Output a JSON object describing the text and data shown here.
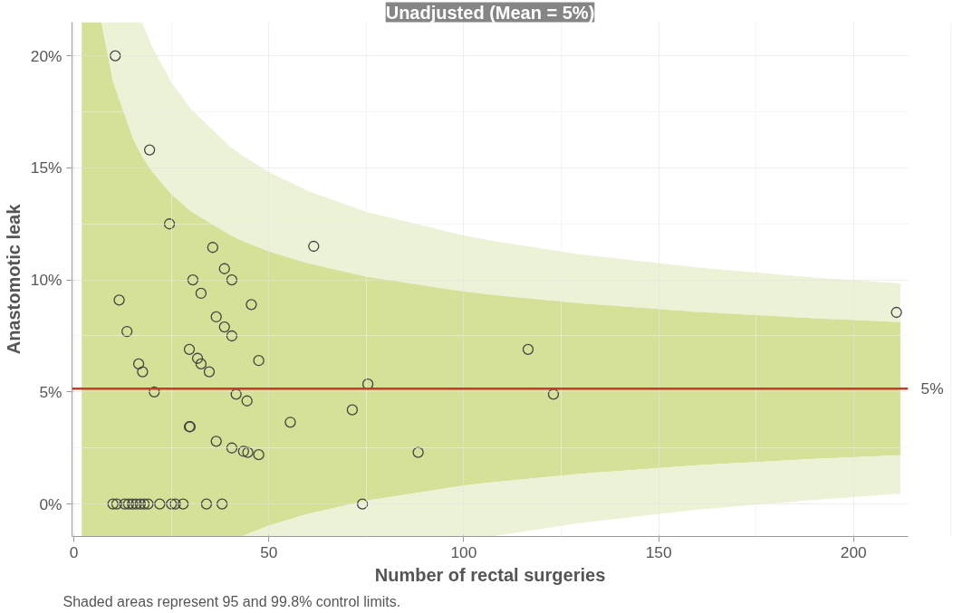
{
  "chart_data": {
    "type": "scatter",
    "title": "Unadjusted (Mean = 5%)",
    "xlabel": "Number of rectal surgeries",
    "ylabel": "Anastomotic leak",
    "annotations": [
      "Shaded areas represent 95 and 99.8% control limits."
    ],
    "xlim": [
      -0.5,
      214
    ],
    "ylim": [
      -1.45,
      21.5
    ],
    "xticks": [
      0,
      50,
      100,
      150,
      200
    ],
    "yticks": [
      {
        "value": 0,
        "label": "0%"
      },
      {
        "value": 5,
        "label": "5%"
      },
      {
        "value": 10,
        "label": "10%"
      },
      {
        "value": 15,
        "label": "15%"
      },
      {
        "value": 20,
        "label": "20%"
      }
    ],
    "grid": true,
    "ref_lines": [
      {
        "axis": "y",
        "value": 5.15,
        "label": "5%",
        "color": "#b5442c"
      }
    ],
    "series": [
      {
        "type": "area",
        "color": "#ebf2d6",
        "x": [
          7,
          10,
          15,
          17.5,
          20,
          25,
          30,
          40,
          43,
          50,
          60,
          75,
          100,
          107,
          130,
          160,
          190,
          212
        ],
        "values": [
          null,
          null,
          null,
          null,
          null,
          null,
          null,
          null,
          null,
          null,
          null,
          null,
          null,
          null,
          null,
          null,
          null,
          null
        ],
        "upper": [
          21.5,
          21.5,
          21.5,
          21.5,
          20.42,
          18.81,
          17.62,
          15.95,
          15.57,
          14.81,
          13.97,
          13.04,
          11.98,
          11.75,
          11.14,
          10.55,
          10.11,
          9.84
        ],
        "lower": [
          21.5,
          18.85,
          16.35,
          15.5,
          14.83,
          13.81,
          13.06,
          12.0,
          11.75,
          11.27,
          10.74,
          10.15,
          9.48,
          9.34,
          8.95,
          8.57,
          8.29,
          8.12
        ]
      },
      {
        "type": "area",
        "color": "#d4e197",
        "x": [
          2,
          4,
          7,
          10,
          15,
          17.5,
          20,
          25,
          30,
          40,
          43,
          50,
          60,
          75,
          100,
          107,
          130,
          160,
          190,
          212
        ],
        "values": [
          null,
          null,
          null,
          null,
          null,
          null,
          null,
          null,
          null,
          null,
          null,
          null,
          null,
          null,
          null,
          null,
          null,
          null,
          null,
          null
        ],
        "upper": [
          21.5,
          21.5,
          21.5,
          18.85,
          16.35,
          15.5,
          14.83,
          13.81,
          13.06,
          12.0,
          11.75,
          11.27,
          10.74,
          10.15,
          9.48,
          9.34,
          8.95,
          8.57,
          8.29,
          8.12
        ],
        "lower": [
          -1.45,
          -1.45,
          -1.45,
          -1.45,
          -1.45,
          -1.45,
          -1.45,
          -1.45,
          -1.45,
          -1.45,
          -1.45,
          -0.97,
          -0.44,
          0.15,
          0.82,
          0.96,
          1.35,
          1.73,
          2.01,
          2.18
        ]
      },
      {
        "type": "area",
        "color": "#ebf2d6",
        "x": [
          43,
          50,
          60,
          75,
          100,
          107,
          130,
          160,
          190,
          212
        ],
        "values": [
          null,
          null,
          null,
          null,
          null,
          null,
          null,
          null,
          null,
          null
        ],
        "upper": [
          -1.45,
          -0.97,
          -0.44,
          0.15,
          0.82,
          0.96,
          1.35,
          1.73,
          2.01,
          2.18
        ],
        "lower": [
          -1.45,
          -1.45,
          -1.45,
          -1.45,
          -1.45,
          -1.45,
          -0.84,
          -0.25,
          0.19,
          0.46
        ]
      },
      {
        "marker": "circle",
        "color": "#444444",
        "x": [
          10.6,
          19.4,
          24.5,
          35.6,
          61.5,
          211,
          11.6,
          30.5,
          38.6,
          40.5,
          32.6,
          45.5,
          13.6,
          36.5,
          38.6,
          40.5,
          116.5,
          29.6,
          16.6,
          17.6,
          31.7,
          32.6,
          34.7,
          47.4,
          20.6,
          75.4,
          41.6,
          44.4,
          123,
          71.4,
          55.5,
          29.6,
          29.8,
          36.5,
          40.5,
          43.5,
          44.6,
          47.4,
          88.3,
          10,
          11,
          13,
          14,
          15,
          16,
          17,
          18,
          19,
          22,
          25,
          26,
          28,
          34,
          38,
          74
        ],
        "values": [
          20.0,
          15.8,
          12.5,
          11.45,
          11.5,
          8.55,
          9.1,
          10.0,
          10.5,
          10.0,
          9.4,
          8.9,
          7.7,
          8.35,
          7.9,
          7.5,
          6.9,
          6.9,
          6.25,
          5.9,
          6.5,
          6.25,
          5.9,
          6.4,
          5.0,
          5.35,
          4.9,
          4.6,
          4.9,
          4.2,
          3.65,
          3.45,
          3.45,
          2.8,
          2.5,
          2.35,
          2.3,
          2.2,
          2.3,
          0,
          0,
          0,
          0,
          0,
          0,
          0,
          0,
          0,
          0,
          0,
          0,
          0,
          0,
          0,
          0
        ]
      }
    ]
  }
}
